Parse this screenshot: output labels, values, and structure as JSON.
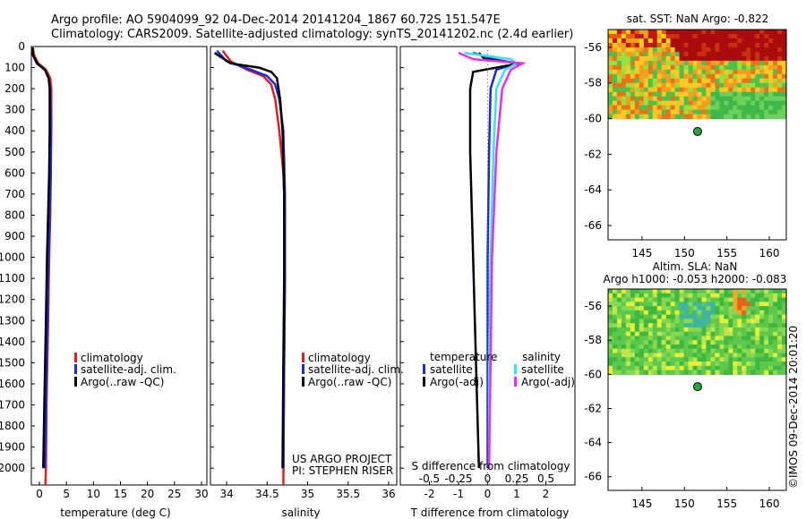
{
  "header": {
    "line1": "Argo profile: AO 5904099_92 04-Dec-2014 20141204_1867 60.72S 151.547E",
    "line2": "Climatology: CARS2009. Satellite-adjusted climatology: synTS_20141202.nc (2.4d earlier)"
  },
  "colors": {
    "climatology": "#e0201b",
    "satellite": "#1a2adf",
    "argo": "#000000",
    "sat_salinity": "#2fe6f0",
    "argo_salinity": "#f02bf0"
  },
  "credits": {
    "line1": "US ARGO PROJECT",
    "line2": "PI: STEPHEN RISER"
  },
  "watermark": "©IMOS 09-Dec-2014 20:01:20",
  "chart_data": [
    {
      "id": "temperature",
      "type": "line",
      "xlabel": "temperature (deg C)",
      "ylim": [
        2080,
        0
      ],
      "xlim": [
        -1.5,
        31
      ],
      "xticks": [
        "0",
        "5",
        "10",
        "15",
        "20",
        "25",
        "30"
      ],
      "xtick_values": [
        0,
        5,
        10,
        15,
        20,
        25,
        30
      ],
      "yticks": [
        "0",
        "100",
        "200",
        "300",
        "400",
        "500",
        "600",
        "700",
        "800",
        "900",
        "1000",
        "1100",
        "1200",
        "1300",
        "1400",
        "1500",
        "1600",
        "1700",
        "1800",
        "1900",
        "2000"
      ],
      "legend": [
        "climatology",
        "satellite-adj. clim.",
        "Argo(..raw -QC)"
      ],
      "series": [
        {
          "name": "climatology",
          "color": "#e0201b",
          "x": [
            -1.2,
            -1.0,
            -0.2,
            1.2,
            2.0,
            2.2,
            2.2,
            2.1,
            2.0,
            1.8,
            1.6,
            1.3,
            1.2,
            1.1
          ],
          "y": [
            5,
            40,
            80,
            110,
            150,
            200,
            400,
            600,
            800,
            1000,
            1300,
            1700,
            2000,
            2080
          ]
        },
        {
          "name": "satellite-adj. clim.",
          "color": "#1a2adf",
          "x": [
            -1.4,
            -1.2,
            -0.5,
            1.0,
            1.7,
            2.0,
            2.1,
            2.1,
            1.9,
            1.7,
            1.5,
            1.2,
            1.0
          ],
          "y": [
            5,
            40,
            80,
            110,
            150,
            200,
            400,
            600,
            800,
            1000,
            1300,
            1700,
            2000
          ]
        },
        {
          "name": "Argo(..raw -QC)",
          "color": "#000000",
          "x": [
            -1.3,
            -1.2,
            -0.4,
            1.0,
            1.7,
            1.9,
            1.9,
            1.8,
            1.6,
            1.4,
            1.2,
            0.9,
            0.7
          ],
          "y": [
            5,
            40,
            80,
            110,
            150,
            200,
            400,
            600,
            800,
            1000,
            1300,
            1700,
            2000
          ]
        }
      ]
    },
    {
      "id": "salinity",
      "type": "line",
      "xlabel": "salinity",
      "xlim": [
        33.8,
        36.1
      ],
      "ylim": [
        2080,
        0
      ],
      "xticks": [
        "34",
        "34.5",
        "35",
        "35.5",
        "36"
      ],
      "xtick_values": [
        34,
        34.5,
        35,
        35.5,
        36
      ],
      "legend": [
        "climatology",
        "satellite-adj. clim.",
        "Argo(..raw -QC)"
      ],
      "series": [
        {
          "name": "climatology",
          "color": "#e0201b",
          "x": [
            33.95,
            34.05,
            34.25,
            34.45,
            34.55,
            34.6,
            34.65,
            34.7,
            34.72,
            34.72,
            34.71,
            34.7
          ],
          "y": [
            20,
            70,
            110,
            140,
            180,
            250,
            400,
            600,
            800,
            1100,
            1500,
            2080
          ]
        },
        {
          "name": "satellite-adj. clim.",
          "color": "#1a2adf",
          "x": [
            33.88,
            34.0,
            34.3,
            34.5,
            34.6,
            34.65,
            34.7,
            34.72,
            34.72,
            34.71,
            34.7
          ],
          "y": [
            20,
            70,
            110,
            140,
            180,
            250,
            400,
            700,
            1100,
            1500,
            2000
          ]
        },
        {
          "name": "Argo(..raw -QC)",
          "color": "#000000",
          "x": [
            33.85,
            34.05,
            34.4,
            34.55,
            34.62,
            34.66,
            34.69,
            34.71,
            34.71,
            34.7,
            34.69
          ],
          "y": [
            30,
            80,
            100,
            120,
            150,
            250,
            400,
            700,
            1100,
            1500,
            2000
          ]
        }
      ]
    },
    {
      "id": "difference",
      "type": "line",
      "xlabel": "T difference from climatology",
      "xlabel2": "S difference from climatology",
      "xlim": [
        -3,
        3
      ],
      "ylim": [
        2080,
        0
      ],
      "xticks": [
        "-2",
        "-1",
        "0",
        "1",
        "2"
      ],
      "xtick_values": [
        -2,
        -1,
        0,
        1,
        2
      ],
      "sticks": [
        "-0.5",
        "-0.25",
        "0",
        "0.25",
        "0.5"
      ],
      "stick_values": [
        -2,
        -1,
        0,
        1,
        2
      ],
      "legend_temperature_title": "temperature",
      "legend_salinity_title": "salinity",
      "legend": [
        "satellite",
        "Argo(-adj)",
        "satellite",
        "Argo(-adj)"
      ],
      "series": [
        {
          "name": "satellite (T)",
          "color": "#1a2adf",
          "x": [
            -0.5,
            0.2,
            1.0,
            0.3,
            0.1,
            0.05,
            0.0,
            0.0,
            0.0
          ],
          "y": [
            30,
            60,
            80,
            110,
            200,
            500,
            1000,
            1500,
            2000
          ]
        },
        {
          "name": "Argo(-adj) (T)",
          "color": "#000000",
          "x": [
            -0.3,
            -0.1,
            1.1,
            -0.5,
            -0.6,
            -0.6,
            -0.5,
            -0.4,
            -0.3
          ],
          "y": [
            30,
            60,
            80,
            120,
            200,
            500,
            1000,
            1500,
            2000
          ]
        },
        {
          "name": "satellite (S)",
          "color": "#2fe6f0",
          "x": [
            -0.8,
            0.8,
            1.0,
            0.6,
            0.3,
            0.2,
            0.1,
            0.05,
            0.05
          ],
          "y": [
            30,
            60,
            80,
            110,
            200,
            500,
            1000,
            1500,
            2000
          ]
        },
        {
          "name": "Argo(-adj) (S)",
          "color": "#f02bf0",
          "x": [
            -1.0,
            -0.5,
            1.2,
            0.8,
            0.5,
            0.3,
            0.15,
            0.1,
            0.05
          ],
          "y": [
            30,
            60,
            80,
            110,
            200,
            500,
            1000,
            1500,
            2000
          ]
        }
      ]
    },
    {
      "id": "sst_map",
      "type": "heatmap",
      "title": "sat. SST: NaN Argo: -0.822",
      "xlim": [
        141,
        162
      ],
      "ylim": [
        -66.8,
        -55
      ],
      "data_lat_range": [
        -60,
        -55
      ],
      "xticks": [
        "145",
        "150",
        "155",
        "160"
      ],
      "xtick_values": [
        145,
        150,
        155,
        160
      ],
      "yticks": [
        "-56",
        "-58",
        "-60",
        "-62",
        "-64",
        "-66"
      ],
      "ytick_values": [
        -56,
        -58,
        -60,
        -62,
        -64,
        -66
      ],
      "float_position": {
        "lon": 151.547,
        "lat": -60.72
      }
    },
    {
      "id": "sla_map",
      "type": "heatmap",
      "title": "Altim. SLA: NaN",
      "subtitle": "Argo h1000: -0.053 h2000: -0.083",
      "xlim": [
        141,
        162
      ],
      "ylim": [
        -66.8,
        -55
      ],
      "data_lat_range": [
        -60,
        -55
      ],
      "xticks": [
        "145",
        "150",
        "155",
        "160"
      ],
      "xtick_values": [
        145,
        150,
        155,
        160
      ],
      "yticks": [
        "-56",
        "-58",
        "-60",
        "-62",
        "-64",
        "-66"
      ],
      "ytick_values": [
        -56,
        -58,
        -60,
        -62,
        -64,
        -66
      ],
      "float_position": {
        "lon": 151.547,
        "lat": -60.72
      }
    }
  ]
}
